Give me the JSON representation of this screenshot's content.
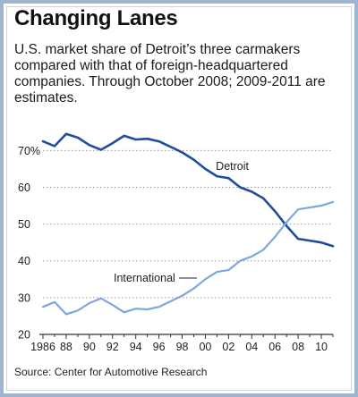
{
  "header": {
    "title": "Changing Lanes",
    "subtitle": "U.S. market share of Detroit’s three carmakers compared with that of foreign-headquartered companies. Through October 2008; 2009-2011 are estimates."
  },
  "footer": {
    "source": "Source: Center for Automotive Research"
  },
  "colors": {
    "detroit": "#1f4e9c",
    "international": "#7ea7dd",
    "grid": "#9a9a9a",
    "axis": "#333333"
  },
  "chart_data": {
    "type": "line",
    "title": "Changing Lanes",
    "xlabel": "",
    "ylabel": "",
    "xlim": [
      1986,
      2011
    ],
    "ylim": [
      20,
      73
    ],
    "x_tick_labels": [
      "1986",
      "88",
      "90",
      "92",
      "94",
      "96",
      "98",
      "00",
      "02",
      "04",
      "06",
      "08",
      "10"
    ],
    "x_tick_values": [
      1986,
      1988,
      1990,
      1992,
      1994,
      1996,
      1998,
      2000,
      2002,
      2004,
      2006,
      2008,
      2010
    ],
    "y_tick_labels": [
      "70%",
      "60",
      "50",
      "40",
      "30",
      "20"
    ],
    "y_tick_values": [
      70,
      60,
      50,
      40,
      30,
      20
    ],
    "grid": "dotted horizontal",
    "x": [
      1986,
      1987,
      1988,
      1989,
      1990,
      1991,
      1992,
      1993,
      1994,
      1995,
      1996,
      1997,
      1998,
      1999,
      2000,
      2001,
      2002,
      2003,
      2004,
      2005,
      2006,
      2007,
      2008,
      2009,
      2010,
      2011
    ],
    "series": [
      {
        "name": "Detroit",
        "values": [
          72.5,
          71.2,
          74.5,
          73.5,
          71.5,
          70.2,
          72.0,
          74.0,
          73.0,
          73.2,
          72.5,
          71.0,
          69.5,
          67.5,
          65.0,
          63.0,
          62.5,
          60.0,
          58.8,
          57.0,
          53.5,
          49.5,
          46.0,
          45.5,
          45.0,
          44.0
        ]
      },
      {
        "name": "International",
        "values": [
          27.5,
          28.8,
          25.5,
          26.5,
          28.5,
          29.8,
          28.0,
          26.0,
          27.0,
          26.8,
          27.5,
          29.0,
          30.5,
          32.5,
          35.0,
          37.0,
          37.5,
          40.0,
          41.2,
          43.0,
          46.5,
          50.5,
          54.0,
          54.5,
          55.0,
          56.0
        ]
      }
    ],
    "annotations": [
      {
        "text": "Detroit",
        "series": "Detroit"
      },
      {
        "text": "International",
        "series": "International"
      }
    ]
  }
}
